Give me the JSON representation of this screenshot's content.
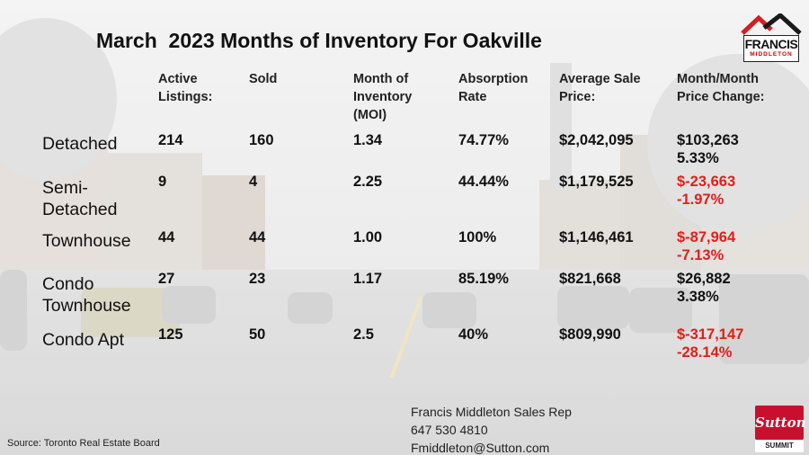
{
  "title": "March  2023 Months of Inventory For Oakville",
  "logo": {
    "line1": "FRANCIS",
    "line2": "MIDDLETON"
  },
  "columns": {
    "active": "Active\nListings:",
    "sold": "Sold",
    "moi": "Month of\nInventory\n(MOI)",
    "absorption": "Absorption\nRate",
    "avg_price": "Average Sale\nPrice:",
    "change": "Month/Month\nPrice Change:"
  },
  "rows": [
    {
      "label": "Detached",
      "active": "214",
      "sold": "160",
      "moi": "1.34",
      "absorption": "74.77%",
      "avg_price": "$2,042,095",
      "change": "$103,263\n5.33%",
      "change_negative": false
    },
    {
      "label": "Semi-\nDetached",
      "active": "9",
      "sold": "4",
      "moi": "2.25",
      "absorption": "44.44%",
      "avg_price": "$1,179,525",
      "change": "$-23,663\n-1.97%",
      "change_negative": true
    },
    {
      "label": "Townhouse",
      "active": "44",
      "sold": "44",
      "moi": "1.00",
      "absorption": "100%",
      "avg_price": "$1,146,461",
      "change": "$-87,964\n-7.13%",
      "change_negative": true
    },
    {
      "label": "Condo\nTownhouse",
      "active": "27",
      "sold": "23",
      "moi": "1.17",
      "absorption": "85.19%",
      "avg_price": "$821,668",
      "change": "$26,882\n3.38%",
      "change_negative": false
    },
    {
      "label": "Condo Apt",
      "active": "125",
      "sold": "50",
      "moi": "2.5",
      "absorption": "40%",
      "avg_price": "$809,990",
      "change": "$-317,147\n-28.14%",
      "change_negative": true
    }
  ],
  "footer": {
    "source": "Source: Toronto Real Estate Board",
    "contact_name": "Francis Middleton Sales Rep",
    "contact_phone": "647 530 4810",
    "contact_email": "Fmiddleton@Sutton.com"
  },
  "brand": {
    "name": "Sutton",
    "sub": "SUMMIT"
  },
  "colors": {
    "negative": "#e0201a",
    "logo_red": "#c8102e"
  }
}
